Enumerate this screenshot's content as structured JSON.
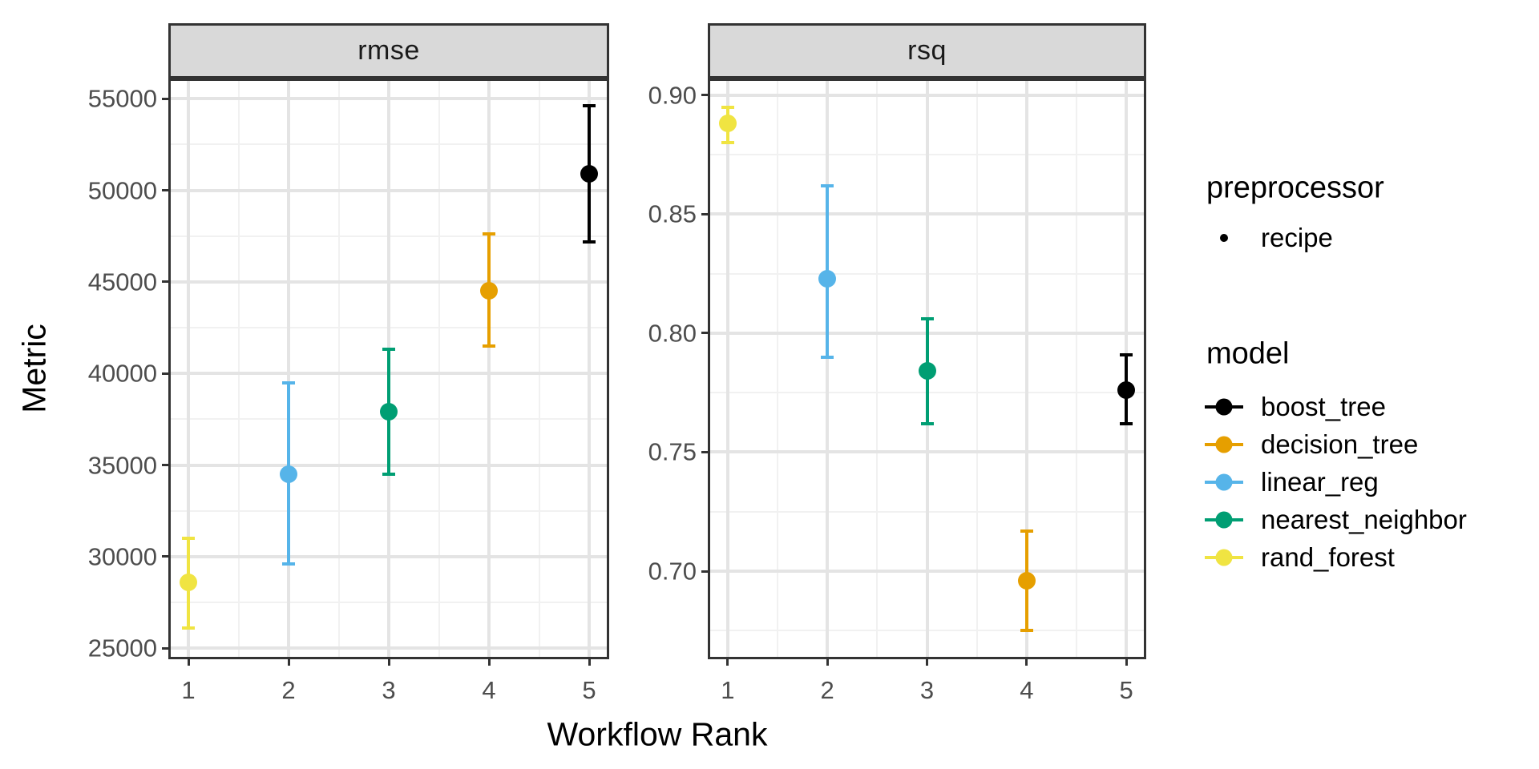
{
  "axes": {
    "y_title": "Metric",
    "x_title": "Workflow Rank"
  },
  "theme": {
    "strip_fill": "#D9D9D9",
    "panel_border": "#333333",
    "grid_major": "#E4E4E4",
    "grid_minor": "#F1F1F1",
    "tick_color": "#333333",
    "tick_label_color": "#4D4D4D"
  },
  "model_colors": {
    "boost_tree": "#000000",
    "decision_tree": "#E69F00",
    "linear_reg": "#56B4E9",
    "nearest_neighbor": "#009E73",
    "rand_forest": "#F0E442"
  },
  "chart_data": [
    {
      "type": "pointrange",
      "facet_label": "rmse",
      "xlabel": "Workflow Rank",
      "ylabel": "Metric",
      "xlim": [
        0.8,
        5.2
      ],
      "ylim": [
        24400,
        56100
      ],
      "grid": true,
      "yticks": [
        {
          "v": 25000,
          "label": "25000"
        },
        {
          "v": 30000,
          "label": "30000"
        },
        {
          "v": 35000,
          "label": "35000"
        },
        {
          "v": 40000,
          "label": "40000"
        },
        {
          "v": 45000,
          "label": "45000"
        },
        {
          "v": 50000,
          "label": "50000"
        },
        {
          "v": 55000,
          "label": "55000"
        }
      ],
      "yminor": [
        27500,
        32500,
        37500,
        42500,
        47500,
        52500
      ],
      "xticks": [
        {
          "v": 1,
          "label": "1"
        },
        {
          "v": 2,
          "label": "2"
        },
        {
          "v": 3,
          "label": "3"
        },
        {
          "v": 4,
          "label": "4"
        },
        {
          "v": 5,
          "label": "5"
        }
      ],
      "xminor": [
        1.5,
        2.5,
        3.5,
        4.5
      ],
      "points": [
        {
          "rank": 1,
          "model": "rand_forest",
          "mean": 28600,
          "lo": 26100,
          "hi": 31000
        },
        {
          "rank": 2,
          "model": "linear_reg",
          "mean": 34500,
          "lo": 29600,
          "hi": 39500
        },
        {
          "rank": 3,
          "model": "nearest_neighbor",
          "mean": 37900,
          "lo": 34500,
          "hi": 41300
        },
        {
          "rank": 4,
          "model": "decision_tree",
          "mean": 44500,
          "lo": 41500,
          "hi": 47600
        },
        {
          "rank": 5,
          "model": "boost_tree",
          "mean": 50900,
          "lo": 47200,
          "hi": 54600
        }
      ]
    },
    {
      "type": "pointrange",
      "facet_label": "rsq",
      "xlabel": "Workflow Rank",
      "ylabel": "Metric",
      "xlim": [
        0.8,
        5.2
      ],
      "ylim": [
        0.663,
        0.907
      ],
      "grid": true,
      "yticks": [
        {
          "v": 0.7,
          "label": "0.70"
        },
        {
          "v": 0.75,
          "label": "0.75"
        },
        {
          "v": 0.8,
          "label": "0.80"
        },
        {
          "v": 0.85,
          "label": "0.85"
        },
        {
          "v": 0.9,
          "label": "0.90"
        }
      ],
      "yminor": [
        0.675,
        0.725,
        0.775,
        0.825,
        0.875
      ],
      "xticks": [
        {
          "v": 1,
          "label": "1"
        },
        {
          "v": 2,
          "label": "2"
        },
        {
          "v": 3,
          "label": "3"
        },
        {
          "v": 4,
          "label": "4"
        },
        {
          "v": 5,
          "label": "5"
        }
      ],
      "xminor": [
        1.5,
        2.5,
        3.5,
        4.5
      ],
      "points": [
        {
          "rank": 1,
          "model": "rand_forest",
          "mean": 0.888,
          "lo": 0.88,
          "hi": 0.895
        },
        {
          "rank": 2,
          "model": "linear_reg",
          "mean": 0.823,
          "lo": 0.79,
          "hi": 0.862
        },
        {
          "rank": 3,
          "model": "nearest_neighbor",
          "mean": 0.784,
          "lo": 0.762,
          "hi": 0.806
        },
        {
          "rank": 4,
          "model": "decision_tree",
          "mean": 0.696,
          "lo": 0.675,
          "hi": 0.717
        },
        {
          "rank": 5,
          "model": "boost_tree",
          "mean": 0.776,
          "lo": 0.762,
          "hi": 0.791
        }
      ]
    }
  ],
  "legend": {
    "position": "right",
    "preprocessor": {
      "title": "preprocessor",
      "items": [
        {
          "label": "recipe",
          "color": "#000000"
        }
      ]
    },
    "model": {
      "title": "model",
      "items": [
        {
          "label": "boost_tree",
          "color": "#000000"
        },
        {
          "label": "decision_tree",
          "color": "#E69F00"
        },
        {
          "label": "linear_reg",
          "color": "#56B4E9"
        },
        {
          "label": "nearest_neighbor",
          "color": "#009E73"
        },
        {
          "label": "rand_forest",
          "color": "#F0E442"
        }
      ]
    }
  }
}
